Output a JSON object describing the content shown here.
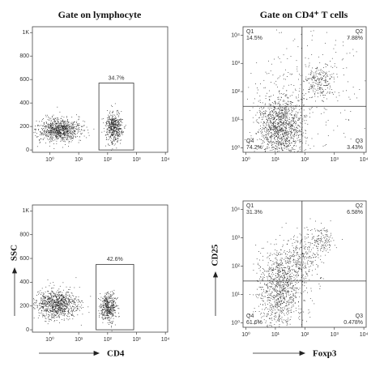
{
  "chart_data": [
    {
      "type": "scatter",
      "title": "Gate on lymphocyte",
      "xscale": "log",
      "xlim": [
        0.25,
        12000
      ],
      "ylim": [
        -20,
        1050
      ],
      "xticks": [
        {
          "value": 1,
          "label": "10⁰"
        },
        {
          "value": 10,
          "label": "10¹"
        },
        {
          "value": 100,
          "label": "10²"
        },
        {
          "value": 1000,
          "label": "10³"
        },
        {
          "value": 10000,
          "label": "10⁴"
        }
      ],
      "yticks": [
        0,
        200,
        400,
        600,
        800,
        {
          "value": 1000,
          "label": "1K"
        }
      ],
      "gate": {
        "x": [
          50,
          800
        ],
        "y": [
          0,
          570
        ]
      },
      "values": [
        34.7
      ],
      "value_labels": [
        "34.7%"
      ]
    },
    {
      "type": "scatter",
      "title": "Gate on CD4⁺ T cells",
      "xscale": "log",
      "yscale": "log",
      "xlim": [
        0.8,
        12000
      ],
      "ylim": [
        0.7,
        20000
      ],
      "xticks": [
        {
          "value": 1,
          "label": "10⁰"
        },
        {
          "value": 10,
          "label": "10¹"
        },
        {
          "value": 100,
          "label": "10²"
        },
        {
          "value": 1000,
          "label": "10³"
        },
        {
          "value": 10000,
          "label": "10⁴"
        }
      ],
      "yticks": [
        {
          "value": 1,
          "label": "10⁰"
        },
        {
          "value": 10,
          "label": "10¹"
        },
        {
          "value": 100,
          "label": "10²"
        },
        {
          "value": 1000,
          "label": "10³"
        },
        {
          "value": 10000,
          "label": "10⁴"
        }
      ],
      "quadrant_x": 80,
      "quadrant_y": 30,
      "quadrant_names": [
        "Q1",
        "Q2",
        "Q3",
        "Q4"
      ],
      "values": [
        14.5,
        7.88,
        3.43,
        74.2
      ],
      "value_labels": [
        "14.5%",
        "7.88%",
        "3.43%",
        "74.2%"
      ]
    },
    {
      "type": "scatter",
      "xscale": "log",
      "xlim": [
        0.25,
        12000
      ],
      "ylim": [
        -20,
        1050
      ],
      "xlabel": "CD4",
      "ylabel": "SSC",
      "xticks": [
        {
          "value": 1,
          "label": "10⁰"
        },
        {
          "value": 10,
          "label": "10¹"
        },
        {
          "value": 100,
          "label": "10²"
        },
        {
          "value": 1000,
          "label": "10³"
        },
        {
          "value": 10000,
          "label": "10⁴"
        }
      ],
      "yticks": [
        0,
        200,
        400,
        600,
        800,
        {
          "value": 1000,
          "label": "1K"
        }
      ],
      "gate": {
        "x": [
          40,
          800
        ],
        "y": [
          0,
          550
        ]
      },
      "values": [
        42.6
      ],
      "value_labels": [
        "42.6%"
      ]
    },
    {
      "type": "scatter",
      "xscale": "log",
      "yscale": "log",
      "xlim": [
        0.8,
        12000
      ],
      "ylim": [
        0.7,
        20000
      ],
      "xlabel": "Foxp3",
      "ylabel": "CD25",
      "xticks": [
        {
          "value": 1,
          "label": "10⁰"
        },
        {
          "value": 10,
          "label": "10¹"
        },
        {
          "value": 100,
          "label": "10²"
        },
        {
          "value": 1000,
          "label": "10³"
        },
        {
          "value": 10000,
          "label": "10⁴"
        }
      ],
      "yticks": [
        {
          "value": 1,
          "label": "10⁰"
        },
        {
          "value": 10,
          "label": "10¹"
        },
        {
          "value": 100,
          "label": "10²"
        },
        {
          "value": 1000,
          "label": "10³"
        },
        {
          "value": 10000,
          "label": "10⁴"
        }
      ],
      "quadrant_x": 80,
      "quadrant_y": 30,
      "quadrant_names": [
        "Q1",
        "Q2",
        "Q3",
        "Q4"
      ],
      "values": [
        31.3,
        6.58,
        0.478,
        61.6
      ],
      "value_labels": [
        "31.3%",
        "6.58%",
        "0.478%",
        "61.6%"
      ]
    }
  ]
}
